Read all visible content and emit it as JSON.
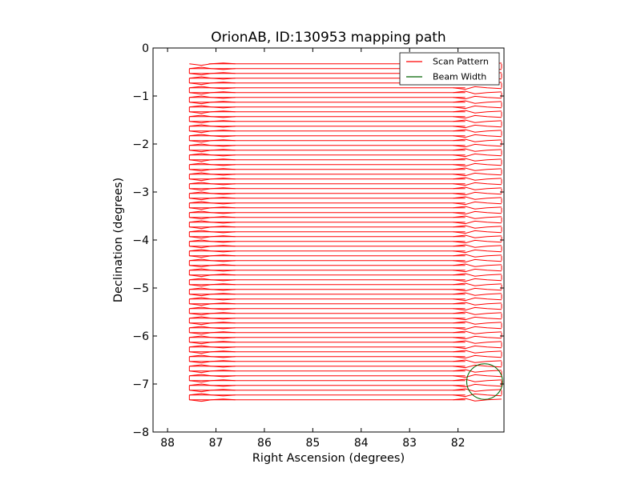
{
  "chart_data": {
    "type": "line",
    "title": "OrionAB, ID:130953 mapping path",
    "xlabel": "Right Ascension (degrees)",
    "ylabel": "Declination (degrees)",
    "xlim": [
      88.3,
      81.05
    ],
    "ylim": [
      -8,
      0
    ],
    "x_inverted": true,
    "xticks": [
      88,
      87,
      86,
      85,
      84,
      83,
      82
    ],
    "xtick_labels": [
      "88",
      "87",
      "86",
      "85",
      "84",
      "83",
      "82"
    ],
    "yticks": [
      0,
      -1,
      -2,
      -3,
      -4,
      -5,
      -6,
      -7,
      -8
    ],
    "ytick_labels": [
      "0",
      "−1",
      "−2",
      "−3",
      "−4",
      "−5",
      "−6",
      "−7",
      "−8"
    ],
    "grid": false,
    "legend": {
      "position": "top-right"
    },
    "series": [
      {
        "name": "Scan Pattern",
        "color": "#ff0000",
        "kind": "raster-scan",
        "row_spacing_deg": 0.1,
        "first_row_dec": -0.33,
        "last_row_dec": -7.38,
        "ra_start": 87.15,
        "ra_end": 81.85,
        "turnaround_ra_west": 87.55,
        "turnaround_ra_east": 81.1
      },
      {
        "name": "Beam Width",
        "color": "#006400",
        "kind": "circle",
        "center_ra": 81.45,
        "center_dec": -6.95,
        "radius_deg": 0.37
      }
    ]
  }
}
